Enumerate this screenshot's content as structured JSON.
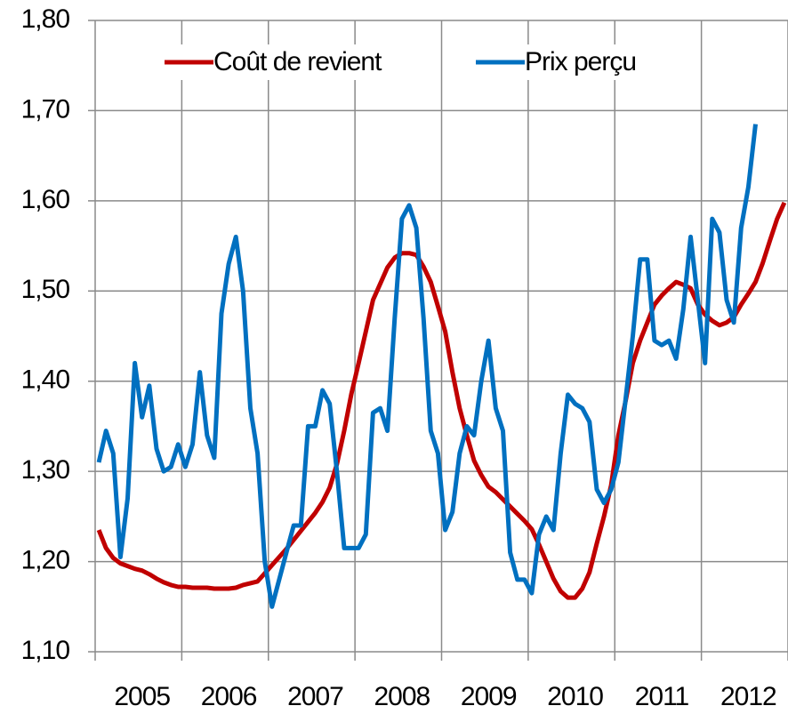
{
  "chart_data": {
    "type": "line",
    "categories": [
      null,
      null,
      null,
      null,
      null,
      null,
      "2005",
      null,
      null,
      null,
      null,
      null,
      null,
      null,
      null,
      null,
      null,
      null,
      "2006",
      null,
      null,
      null,
      null,
      null,
      null,
      null,
      null,
      null,
      null,
      null,
      "2007",
      null,
      null,
      null,
      null,
      null,
      null,
      null,
      null,
      null,
      null,
      null,
      "2008",
      null,
      null,
      null,
      null,
      null,
      null,
      null,
      null,
      null,
      null,
      null,
      "2009",
      null,
      null,
      null,
      null,
      null,
      null,
      null,
      null,
      null,
      null,
      null,
      "2010",
      null,
      null,
      null,
      null,
      null,
      null,
      null,
      null,
      null,
      null,
      null,
      "2011",
      null,
      null,
      null,
      null,
      null,
      null,
      null,
      null,
      null,
      null,
      null,
      "2012",
      null,
      null,
      null,
      null,
      null
    ],
    "series": [
      {
        "name": "Coût de revient",
        "color": "#c00000",
        "values": [
          1.235,
          1.215,
          1.204,
          1.198,
          1.195,
          1.192,
          1.19,
          1.186,
          1.181,
          1.177,
          1.174,
          1.172,
          1.172,
          1.171,
          1.171,
          1.171,
          1.17,
          1.17,
          1.17,
          1.171,
          1.174,
          1.176,
          1.178,
          1.187,
          1.196,
          1.205,
          1.214,
          1.224,
          1.234,
          1.244,
          1.254,
          1.266,
          1.282,
          1.308,
          1.345,
          1.386,
          1.42,
          1.455,
          1.49,
          1.508,
          1.526,
          1.537,
          1.542,
          1.542,
          1.54,
          1.527,
          1.51,
          1.483,
          1.455,
          1.41,
          1.37,
          1.34,
          1.312,
          1.296,
          1.283,
          1.277,
          1.269,
          1.261,
          1.253,
          1.245,
          1.236,
          1.219,
          1.2,
          1.181,
          1.167,
          1.16,
          1.16,
          1.17,
          1.188,
          1.22,
          1.25,
          1.285,
          1.34,
          1.378,
          1.42,
          1.445,
          1.465,
          1.485,
          1.495,
          1.503,
          1.51,
          1.507,
          1.503,
          1.485,
          1.474,
          1.467,
          1.462,
          1.465,
          1.471,
          1.485,
          1.497,
          1.51,
          1.531,
          1.556,
          1.58,
          1.598
        ]
      },
      {
        "name": "Prix perçu",
        "color": "#0070c0",
        "values": [
          1.31,
          1.345,
          1.32,
          1.205,
          1.27,
          1.42,
          1.36,
          1.395,
          1.325,
          1.3,
          1.305,
          1.33,
          1.305,
          1.33,
          1.41,
          1.34,
          1.315,
          1.475,
          1.53,
          1.56,
          1.5,
          1.37,
          1.32,
          1.2,
          1.15,
          1.18,
          1.21,
          1.24,
          1.24,
          1.35,
          1.35,
          1.39,
          1.375,
          1.3,
          1.215,
          1.215,
          1.215,
          1.23,
          1.365,
          1.37,
          1.345,
          1.47,
          1.58,
          1.595,
          1.57,
          1.47,
          1.345,
          1.32,
          1.235,
          1.255,
          1.32,
          1.35,
          1.34,
          1.4,
          1.445,
          1.37,
          1.345,
          1.21,
          1.18,
          1.18,
          1.165,
          1.23,
          1.25,
          1.235,
          1.32,
          1.385,
          1.375,
          1.37,
          1.355,
          1.28,
          1.265,
          1.28,
          1.31,
          1.38,
          1.45,
          1.535,
          1.535,
          1.445,
          1.44,
          1.445,
          1.425,
          1.48,
          1.56,
          1.49,
          1.42,
          1.58,
          1.565,
          1.49,
          1.465,
          1.57,
          1.615,
          1.685,
          null,
          null,
          null,
          null
        ]
      }
    ],
    "ylim": [
      1.1,
      1.8
    ],
    "yticks": [
      {
        "value": 1.1,
        "label": "1,10"
      },
      {
        "value": 1.2,
        "label": "1,20"
      },
      {
        "value": 1.3,
        "label": "1,30"
      },
      {
        "value": 1.4,
        "label": "1,40"
      },
      {
        "value": 1.5,
        "label": "1,50"
      },
      {
        "value": 1.6,
        "label": "1,60"
      },
      {
        "value": 1.7,
        "label": "1,70"
      },
      {
        "value": 1.8,
        "label": "1,80"
      }
    ],
    "grid": true,
    "legend": "top"
  }
}
